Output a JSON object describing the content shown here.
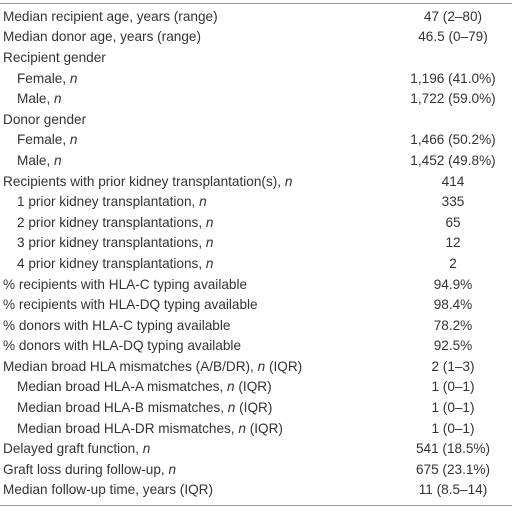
{
  "table": {
    "rows": [
      {
        "label": "Median recipient age, years (range)",
        "value": "47 (2–80)"
      },
      {
        "label": "Median donor age, years (range)",
        "value": "46.5 (0–79)"
      },
      {
        "label": "Recipient gender",
        "children": [
          {
            "label": "Female, ",
            "italic": "n",
            "value": "1,196 (41.0%)"
          },
          {
            "label": "Male, ",
            "italic": "n",
            "value": "1,722 (59.0%)"
          }
        ]
      },
      {
        "label": "Donor gender",
        "children": [
          {
            "label": "Female, ",
            "italic": "n",
            "value": "1,466 (50.2%)"
          },
          {
            "label": "Male, ",
            "italic": "n",
            "value": "1,452 (49.8%)"
          }
        ]
      },
      {
        "label": "Recipients with prior kidney transplantation(s), ",
        "italic": "n",
        "value": "414",
        "children": [
          {
            "label": "1 prior kidney transplantation, ",
            "italic": "n",
            "value": "335"
          },
          {
            "label": "2 prior kidney transplantations, ",
            "italic": "n",
            "value": "65"
          },
          {
            "label": "3 prior kidney transplantations, ",
            "italic": "n",
            "value": "12"
          },
          {
            "label": "4 prior kidney transplantations, ",
            "italic": "n",
            "value": "2"
          }
        ]
      },
      {
        "label": "% recipients with HLA-C typing available",
        "value": "94.9%"
      },
      {
        "label": "% recipients with HLA-DQ typing available",
        "value": "98.4%"
      },
      {
        "label": "% donors with HLA-C typing available",
        "value": "78.2%"
      },
      {
        "label": "% donors with HLA-DQ typing available",
        "value": "92.5%"
      },
      {
        "label": "Median broad HLA mismatches (A/B/DR), ",
        "italic": "n",
        "suffix": " (IQR)",
        "value": "2 (1–3)",
        "children": [
          {
            "label": "Median broad HLA-A mismatches, ",
            "italic": "n",
            "suffix": " (IQR)",
            "value": "1 (0–1)"
          },
          {
            "label": "Median broad HLA-B mismatches, ",
            "italic": "n",
            "suffix": " (IQR)",
            "value": "1 (0–1)"
          },
          {
            "label": "Median broad HLA-DR mismatches, ",
            "italic": "n",
            "suffix": " (IQR)",
            "value": "1 (0–1)"
          }
        ]
      },
      {
        "label": "Delayed graft function, ",
        "italic": "n",
        "value": "541 (18.5%)"
      },
      {
        "label": "Graft loss during follow-up, ",
        "italic": "n",
        "value": "675 (23.1%)"
      },
      {
        "label": "Median follow-up time, years (IQR)",
        "value": "11 (8.5–14)"
      }
    ]
  }
}
